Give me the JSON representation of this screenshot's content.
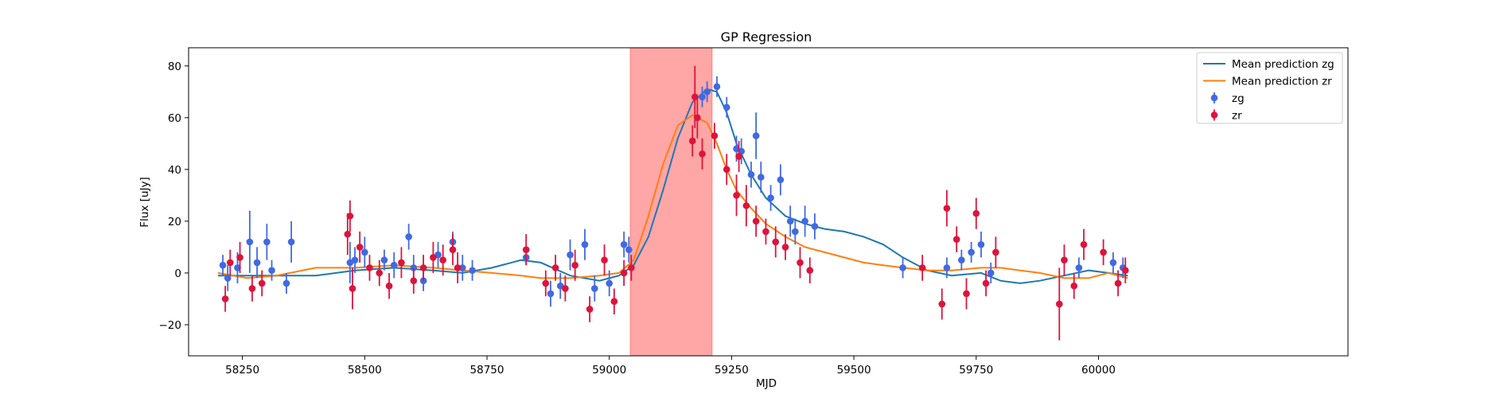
{
  "chart_data": {
    "type": "scatter",
    "title": "GP Regression",
    "xlabel": "MJD",
    "ylabel": "Flux [uJy]",
    "xlim": [
      58140,
      60510
    ],
    "ylim": [
      -32,
      87
    ],
    "xticks": [
      58250,
      58500,
      58750,
      59000,
      59250,
      59500,
      59750,
      60000
    ],
    "yticks": [
      -20,
      0,
      20,
      40,
      60,
      80
    ],
    "grid": false,
    "legend_position": "top-right",
    "shaded_region": {
      "x_start": 59043,
      "x_end": 59210,
      "color": "#ffa6a6"
    },
    "series": [
      {
        "name": "Mean prediction zg",
        "kind": "line",
        "color": "#1f77b4",
        "x": [
          58200,
          58260,
          58320,
          58400,
          58480,
          58560,
          58640,
          58700,
          58760,
          58820,
          58860,
          58920,
          58980,
          59020,
          59050,
          59080,
          59110,
          59140,
          59170,
          59200,
          59220,
          59240,
          59260,
          59290,
          59320,
          59360,
          59400,
          59440,
          59480,
          59520,
          59560,
          59600,
          59650,
          59700,
          59760,
          59800,
          59840,
          59880,
          59930,
          59980,
          60020,
          60060
        ],
        "y": [
          -1,
          -1,
          -1,
          -1,
          1,
          2,
          1,
          0,
          2,
          5,
          4,
          -1,
          -3,
          -1,
          3,
          14,
          32,
          52,
          66,
          71,
          70,
          62,
          50,
          38,
          29,
          22,
          19,
          17,
          16,
          14,
          11,
          6,
          1,
          -1,
          0,
          -3,
          -4,
          -3,
          -1,
          1,
          0,
          -1
        ]
      },
      {
        "name": "Mean prediction zr",
        "kind": "line",
        "color": "#ff7f0e",
        "x": [
          58200,
          58260,
          58320,
          58400,
          58480,
          58560,
          58640,
          58700,
          58760,
          58820,
          58860,
          58920,
          58980,
          59020,
          59050,
          59080,
          59110,
          59140,
          59170,
          59200,
          59220,
          59240,
          59260,
          59290,
          59320,
          59360,
          59400,
          59440,
          59480,
          59520,
          59560,
          59600,
          59650,
          59700,
          59760,
          59800,
          59840,
          59880,
          59930,
          59980,
          60020,
          60060
        ],
        "y": [
          0,
          -2,
          -1,
          2,
          2,
          3,
          2,
          1,
          0,
          -1,
          -2,
          -2,
          -1,
          0,
          5,
          22,
          42,
          57,
          61,
          58,
          50,
          40,
          32,
          25,
          19,
          14,
          10,
          8,
          6,
          4,
          3,
          2,
          1,
          1,
          2,
          2,
          1,
          0,
          -2,
          -2,
          0,
          -2
        ]
      },
      {
        "name": "zg",
        "kind": "errorbar",
        "color": "#4169e1",
        "x": [
          58210,
          58220,
          58240,
          58265,
          58280,
          58300,
          58310,
          58340,
          58350,
          58470,
          58480,
          58500,
          58540,
          58560,
          58590,
          58600,
          58620,
          58650,
          58680,
          58700,
          58720,
          58830,
          58880,
          58900,
          58920,
          58950,
          58970,
          59000,
          59030,
          59040,
          59190,
          59200,
          59220,
          59240,
          59260,
          59270,
          59290,
          59300,
          59310,
          59330,
          59350,
          59370,
          59380,
          59400,
          59420,
          59600,
          59690,
          59720,
          59740,
          59760,
          59780,
          59960,
          60030,
          60050
        ],
        "y": [
          3,
          -2,
          2,
          12,
          4,
          12,
          1,
          -4,
          12,
          4,
          5,
          8,
          5,
          3,
          14,
          2,
          -3,
          7,
          12,
          2,
          1,
          6,
          -8,
          -5,
          7,
          11,
          -6,
          -4,
          11,
          9,
          68,
          70,
          72,
          64,
          48,
          47,
          38,
          53,
          37,
          29,
          36,
          20,
          16,
          20,
          18,
          2,
          2,
          5,
          8,
          11,
          0,
          2,
          4,
          2
        ],
        "err": [
          4,
          5,
          6,
          12,
          6,
          7,
          4,
          4,
          8,
          8,
          5,
          6,
          4,
          5,
          5,
          5,
          4,
          5,
          4,
          5,
          4,
          3,
          5,
          5,
          6,
          6,
          5,
          5,
          5,
          5,
          4,
          4,
          4,
          4,
          5,
          5,
          5,
          9,
          6,
          5,
          6,
          6,
          5,
          6,
          5,
          4,
          4,
          4,
          4,
          5,
          4,
          4,
          4,
          4
        ]
      },
      {
        "name": "zr",
        "kind": "errorbar",
        "color": "#dc143c",
        "x": [
          58215,
          58225,
          58245,
          58270,
          58290,
          58465,
          58470,
          58475,
          58490,
          58510,
          58530,
          58550,
          58575,
          58600,
          58620,
          58640,
          58660,
          58680,
          58690,
          58830,
          58870,
          58890,
          58910,
          58930,
          58960,
          58990,
          59010,
          59030,
          59045,
          59170,
          59175,
          59180,
          59190,
          59215,
          59240,
          59260,
          59265,
          59280,
          59300,
          59320,
          59340,
          59360,
          59390,
          59410,
          59640,
          59680,
          59690,
          59710,
          59730,
          59750,
          59770,
          59790,
          59920,
          59930,
          59950,
          59970,
          60010,
          60040,
          60055
        ],
        "y": [
          -10,
          4,
          6,
          -6,
          -4,
          15,
          22,
          -6,
          10,
          2,
          0,
          -5,
          4,
          -3,
          2,
          6,
          5,
          9,
          2,
          9,
          -4,
          2,
          -6,
          3,
          -14,
          5,
          -11,
          0,
          2,
          51,
          68,
          60,
          46,
          53,
          40,
          30,
          45,
          26,
          20,
          16,
          12,
          10,
          4,
          1,
          2,
          -12,
          25,
          13,
          -8,
          23,
          -4,
          8,
          -12,
          5,
          -5,
          11,
          8,
          -4,
          1
        ],
        "err": [
          5,
          5,
          6,
          5,
          5,
          8,
          6,
          8,
          6,
          5,
          5,
          5,
          6,
          5,
          5,
          6,
          6,
          6,
          6,
          6,
          5,
          5,
          5,
          6,
          5,
          6,
          5,
          5,
          5,
          6,
          12,
          8,
          6,
          5,
          6,
          8,
          6,
          8,
          6,
          5,
          6,
          5,
          6,
          5,
          5,
          6,
          7,
          5,
          6,
          6,
          5,
          6,
          14,
          6,
          5,
          6,
          5,
          5,
          5
        ]
      }
    ]
  }
}
